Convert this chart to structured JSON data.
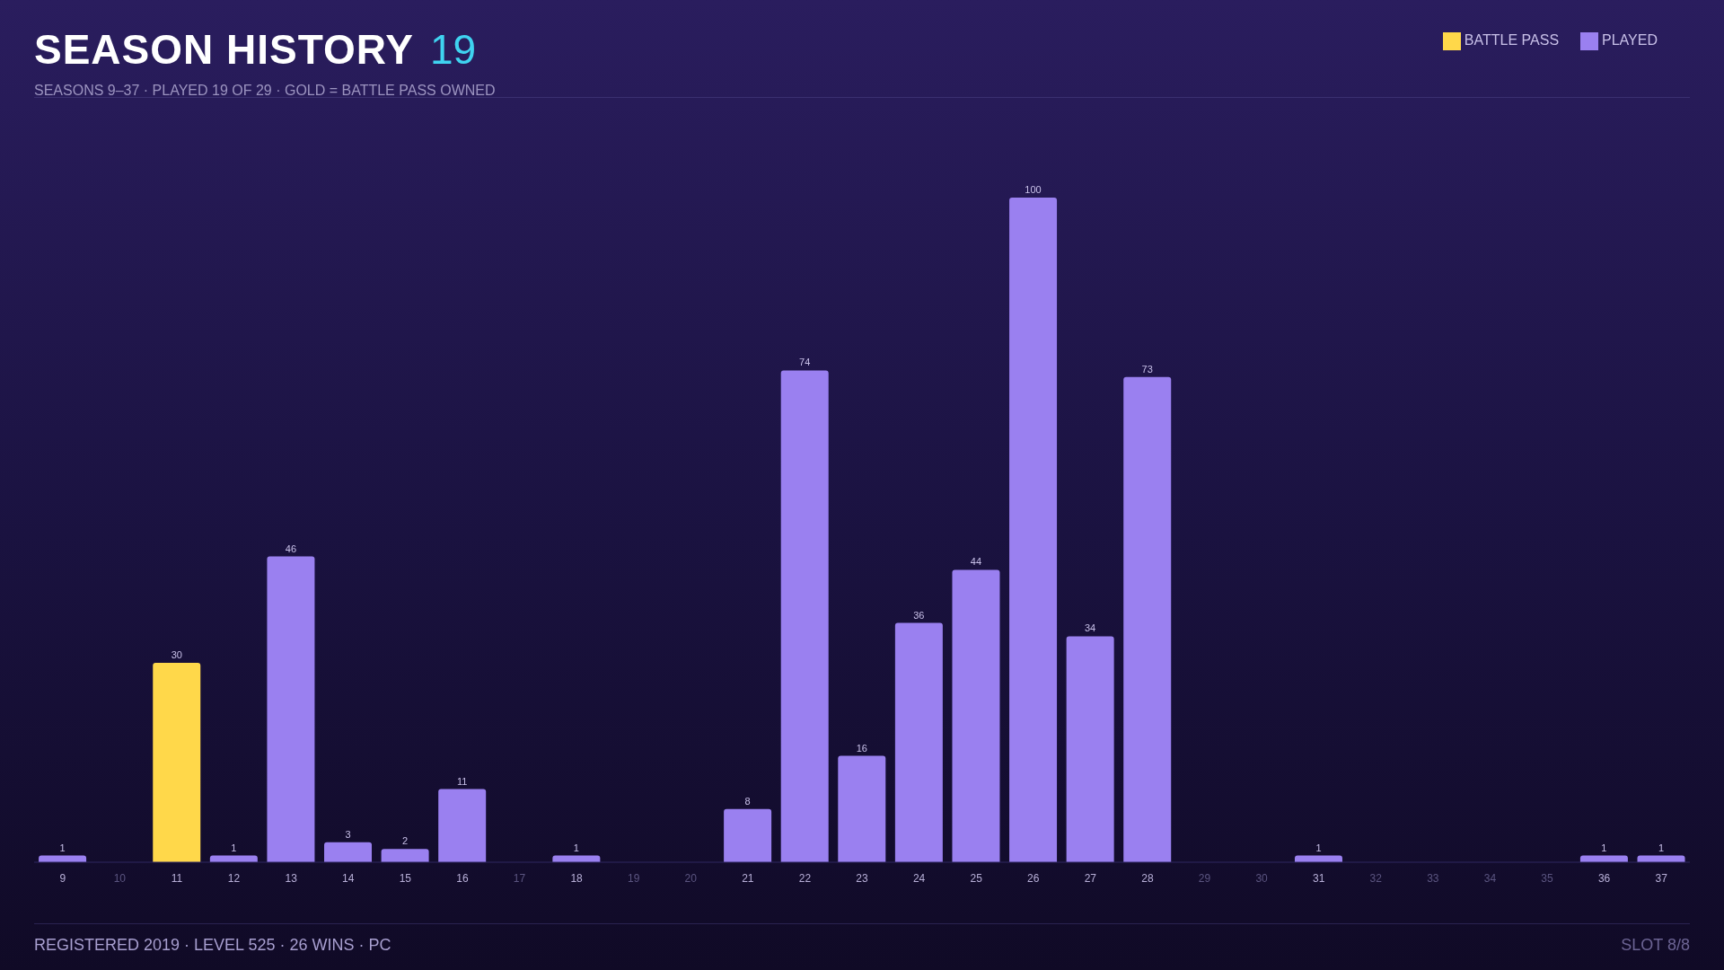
{
  "chart_data": {
    "type": "bar",
    "title": "SEASON HISTORY",
    "subtitle": "SEASONS 9–37 · PLAYED 19 OF 29 · GOLD = BATTLE PASS OWNED",
    "annotations": [
      "19",
      "REGISTERED 2019 · LEVEL 525 · 26 WINS · PC",
      "SLOT 8/8"
    ],
    "categories": [
      "9",
      "10",
      "11",
      "12",
      "13",
      "14",
      "15",
      "16",
      "17",
      "18",
      "19",
      "20",
      "21",
      "22",
      "23",
      "24",
      "25",
      "26",
      "27",
      "28",
      "29",
      "30",
      "31",
      "32",
      "33",
      "34",
      "35",
      "36",
      "37"
    ],
    "stacked": true,
    "data_labels": true,
    "legend": "top right",
    "grid": false,
    "series": [
      {
        "name": "BATTLE PASS",
        "color": "#ffd84a",
        "values": [
          null,
          null,
          30,
          null,
          null,
          null,
          null,
          null,
          null,
          null,
          null,
          null,
          null,
          null,
          null,
          null,
          null,
          null,
          null,
          null,
          null,
          null,
          null,
          null,
          null,
          null,
          null,
          null,
          null
        ]
      },
      {
        "name": "PLAYED",
        "color": "#9a80f0",
        "values": [
          1,
          null,
          null,
          1,
          46,
          3,
          2,
          11,
          null,
          1,
          null,
          null,
          8,
          74,
          16,
          36,
          44,
          100,
          34,
          73,
          null,
          null,
          1,
          null,
          null,
          null,
          null,
          1,
          1
        ]
      }
    ]
  }
}
